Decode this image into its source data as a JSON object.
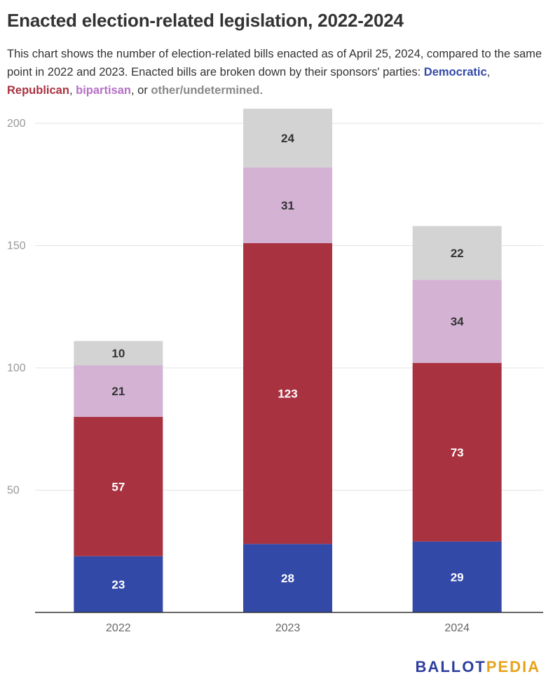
{
  "title": "Enacted election-related legislation, 2022-2024",
  "subtitle": {
    "intro": "This chart shows the number of election-related bills enacted as of April 25, 2024, compared to the same point in 2022 and 2023. Enacted bills are broken down by their sponsors' parties: ",
    "sep1": ", ",
    "sep2": ", ",
    "sep3": ", or ",
    "end": "."
  },
  "logo": {
    "part1": "BALLOT",
    "part2": "PEDIA"
  },
  "chart_data": {
    "type": "bar",
    "stacked": true,
    "categories": [
      "2022",
      "2023",
      "2024"
    ],
    "series": [
      {
        "name": "Democratic",
        "color": "#3349a8",
        "values": [
          23,
          28,
          29
        ]
      },
      {
        "name": "Republican",
        "color": "#a93240",
        "values": [
          57,
          123,
          73
        ]
      },
      {
        "name": "bipartisan",
        "color": "#d4b2d4",
        "values": [
          21,
          31,
          34
        ]
      },
      {
        "name": "other/undetermined",
        "color": "#d3d3d3",
        "values": [
          10,
          24,
          22
        ]
      }
    ],
    "legend_colors": [
      "#3349a8",
      "#a93240",
      "#b56fc4",
      "#888888"
    ],
    "yticks": [
      50,
      100,
      150,
      200
    ],
    "ylim": [
      0,
      200
    ],
    "grid": true,
    "legend": "inline-subtitle"
  }
}
